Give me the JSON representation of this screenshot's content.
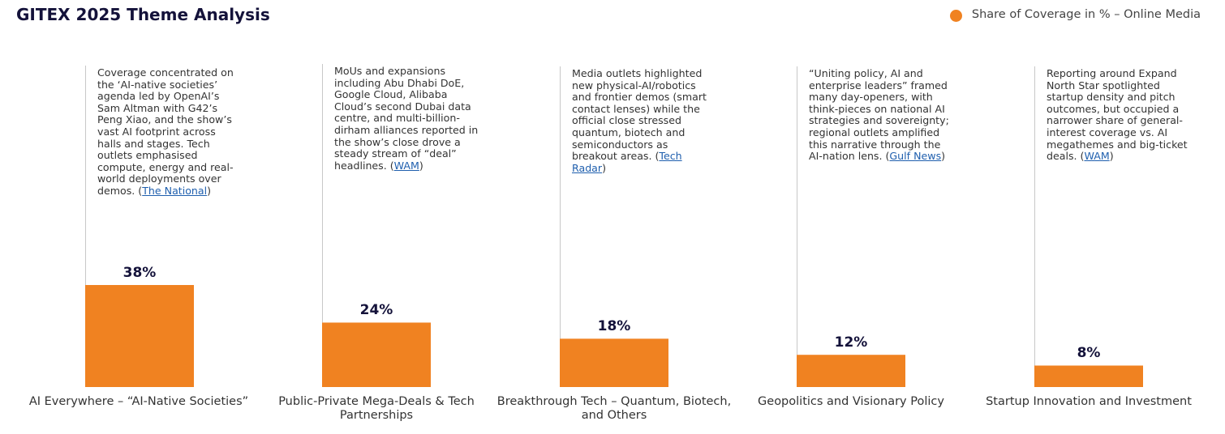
{
  "chart_data": {
    "type": "bar",
    "title": "GITEX 2025 Theme Analysis",
    "categories": [
      "AI Everywhere – “AI-Native Societies”",
      "Public-Private Mega-Deals & Tech Partnerships",
      "Breakthrough Tech – Quantum, Biotech, and Others",
      "Geopolitics and Visionary Policy",
      "Startup Innovation and Investment"
    ],
    "series": [
      {
        "name": "Share of Coverage in % – Online Media",
        "values": [
          38,
          24,
          18,
          12,
          8
        ],
        "color": "#F08221"
      }
    ],
    "data_labels": [
      "38%",
      "24%",
      "18%",
      "12%",
      "8%"
    ],
    "unit": "%",
    "ylim": [
      0,
      38
    ],
    "grid": false,
    "legend_position": "top-right",
    "annotations": [
      {
        "text": "Coverage concentrated on the ‘AI-native societies’ agenda led by OpenAI’s Sam Altman with G42’s Peng Xiao, and the show’s vast AI footprint across halls and stages. Tech outlets emphasised compute, energy and real-world deployments over demos.",
        "source_prefix": "(",
        "source": "The National",
        "source_suffix": ")"
      },
      {
        "text": "MoUs and expansions including Abu Dhabi DoE, Google Cloud, Alibaba Cloud’s second Dubai data centre, and multi-billion-dirham alliances reported in the show’s close drove a steady stream of “deal” headlines.",
        "source_prefix": " (",
        "source": "WAM",
        "source_suffix": ")"
      },
      {
        "text": "Media outlets highlighted new physical-AI/robotics and frontier demos (smart contact lenses) while the official close stressed quantum, biotech and semiconductors as breakout areas.",
        "source_prefix": "(",
        "source": "Tech Radar",
        "source_suffix": ")"
      },
      {
        "text": "“Uniting policy, AI and enterprise leaders” framed many day-openers, with think-pieces on national AI strategies and sovereignty; regional outlets amplified this narrative through the AI-nation lens.",
        "source_prefix": "(",
        "source": "Gulf News",
        "source_suffix": ")"
      },
      {
        "text": "Reporting around Expand North Star spotlighted startup density and pitch outcomes, but occupied a narrower share of general-interest coverage vs. AI megathemes and big-ticket deals.",
        "source_prefix": "(",
        "source": "WAM",
        "source_suffix": ")"
      }
    ]
  },
  "colors": {
    "accent": "#F08221",
    "title": "#14123a",
    "link": "#1f5fae",
    "guide": "#c8c8c8"
  }
}
